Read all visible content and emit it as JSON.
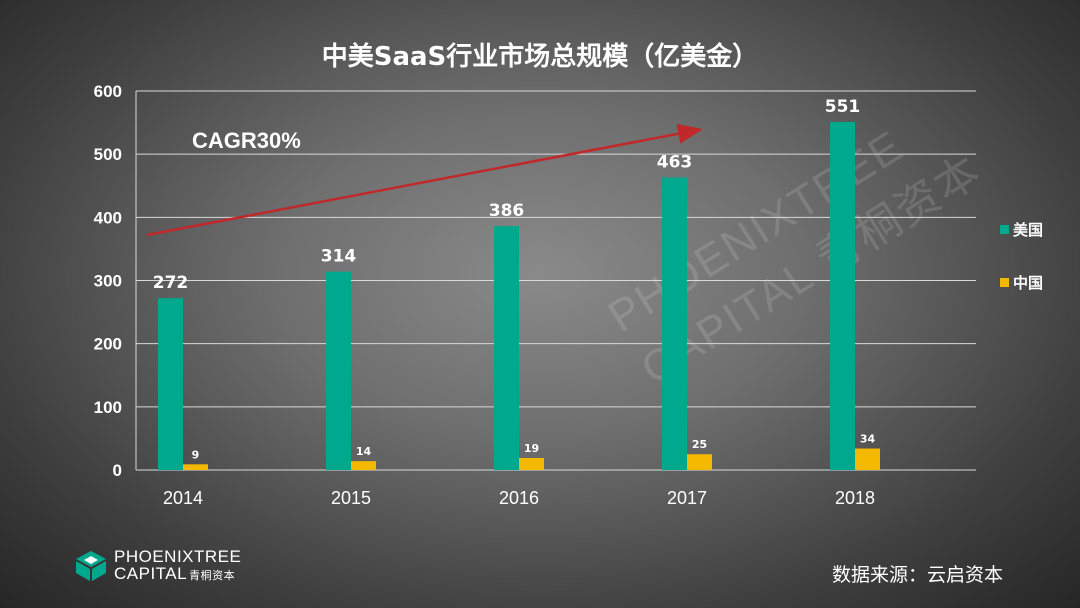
{
  "chart_data": {
    "type": "bar",
    "title": "中美SaaS行业市场总规模（亿美金）",
    "categories": [
      "2014",
      "2015",
      "2016",
      "2017",
      "2018"
    ],
    "series": [
      {
        "name": "美国",
        "values": [
          272,
          314,
          386,
          463,
          551
        ],
        "color": "#00a88e"
      },
      {
        "name": "中国",
        "values": [
          9,
          14,
          19,
          25,
          34
        ],
        "color": "#f5b800"
      }
    ],
    "ylim": [
      0,
      600
    ],
    "yticks": [
      0,
      100,
      200,
      300,
      400,
      500,
      600
    ],
    "grid": true,
    "legend_position": "right",
    "annotation": {
      "text": "CAGR30%"
    }
  },
  "footer": {
    "source": "数据来源：云启资本",
    "logo_line1": "PHOENIXTREE",
    "logo_line2": "CAPITAL",
    "logo_cn": "青桐资本"
  },
  "watermark": {
    "line1": "PHOENIXTREE",
    "line2": "CAPITAL 青桐资本"
  }
}
